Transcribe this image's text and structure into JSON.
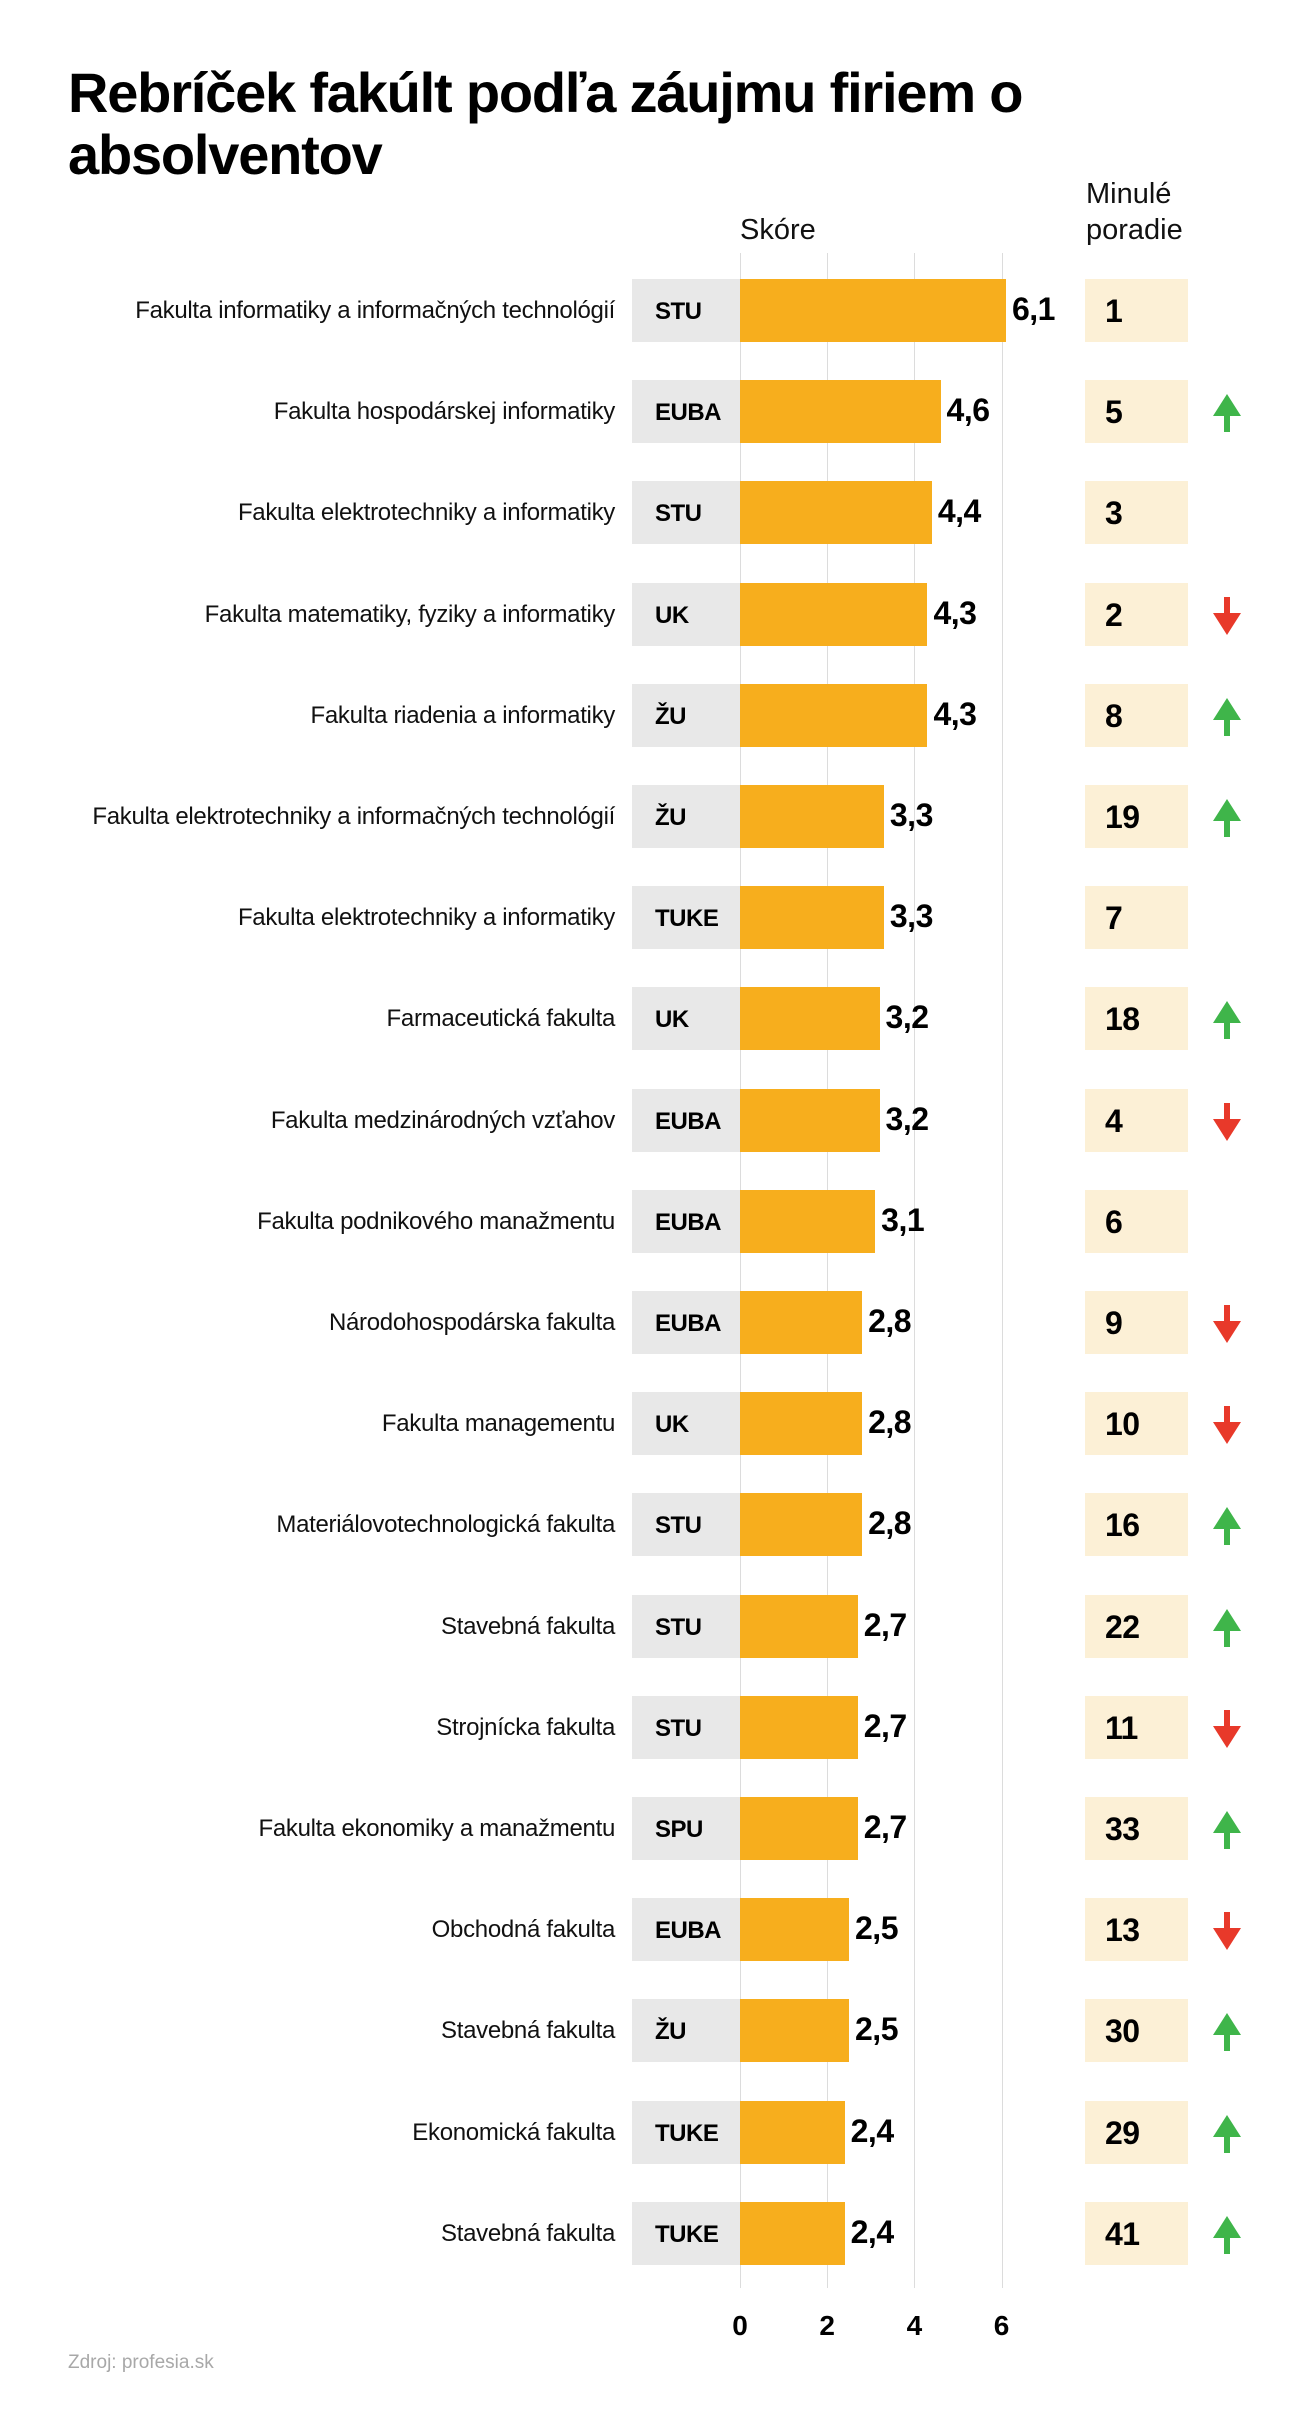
{
  "title": "Rebríček fakúlt podľa záujmu firiem o absolventov",
  "headers": {
    "score": "Skóre",
    "previous_rank_line1": "Minulé",
    "previous_rank_line2": "poradie"
  },
  "source": "Zdroj: profesia.sk",
  "colors": {
    "bar": "#f7ae1d",
    "org_box": "#e8e8e8",
    "prev_box": "#fcf0d6",
    "up": "#3fb54a",
    "down": "#e8392a",
    "grid": "#dcdcdc"
  },
  "chart_data": {
    "type": "bar",
    "orientation": "horizontal",
    "title": "Rebríček fakúlt podľa záujmu firiem o absolventov",
    "xlabel": "Skóre",
    "xlim": [
      0,
      6.5
    ],
    "xticks": [
      0,
      2,
      4,
      6
    ],
    "grid": true,
    "value_format": "decimal-comma",
    "rows": [
      {
        "faculty": "Fakulta informatiky a informačných technológií",
        "university": "STU",
        "score": 6.1,
        "score_label": "6,1",
        "previous_rank": "1",
        "trend": "none"
      },
      {
        "faculty": "Fakulta hospodárskej informatiky",
        "university": "EUBA",
        "score": 4.6,
        "score_label": "4,6",
        "previous_rank": "5",
        "trend": "up"
      },
      {
        "faculty": "Fakulta elektrotechniky a informatiky",
        "university": "STU",
        "score": 4.4,
        "score_label": "4,4",
        "previous_rank": "3",
        "trend": "none"
      },
      {
        "faculty": "Fakulta matematiky, fyziky a informatiky",
        "university": "UK",
        "score": 4.3,
        "score_label": "4,3",
        "previous_rank": "2",
        "trend": "down"
      },
      {
        "faculty": "Fakulta riadenia a informatiky",
        "university": "ŽU",
        "score": 4.3,
        "score_label": "4,3",
        "previous_rank": "8",
        "trend": "up"
      },
      {
        "faculty": "Fakulta elektrotechniky a informačných technológií",
        "university": "ŽU",
        "score": 3.3,
        "score_label": "3,3",
        "previous_rank": "19",
        "trend": "up"
      },
      {
        "faculty": "Fakulta elektrotechniky a informatiky",
        "university": "TUKE",
        "score": 3.3,
        "score_label": "3,3",
        "previous_rank": "7",
        "trend": "none"
      },
      {
        "faculty": "Farmaceutická fakulta",
        "university": "UK",
        "score": 3.2,
        "score_label": "3,2",
        "previous_rank": "18",
        "trend": "up"
      },
      {
        "faculty": "Fakulta medzinárodných vzťahov",
        "university": "EUBA",
        "score": 3.2,
        "score_label": "3,2",
        "previous_rank": "4",
        "trend": "down"
      },
      {
        "faculty": "Fakulta podnikového manažmentu",
        "university": "EUBA",
        "score": 3.1,
        "score_label": "3,1",
        "previous_rank": "6",
        "trend": "none"
      },
      {
        "faculty": "Národohospodárska fakulta",
        "university": "EUBA",
        "score": 2.8,
        "score_label": "2,8",
        "previous_rank": "9",
        "trend": "down"
      },
      {
        "faculty": "Fakulta managementu",
        "university": "UK",
        "score": 2.8,
        "score_label": "2,8",
        "previous_rank": "10",
        "trend": "down"
      },
      {
        "faculty": "Materiálovotechnologická fakulta",
        "university": "STU",
        "score": 2.8,
        "score_label": "2,8",
        "previous_rank": "16",
        "trend": "up"
      },
      {
        "faculty": "Stavebná fakulta",
        "university": "STU",
        "score": 2.7,
        "score_label": "2,7",
        "previous_rank": "22",
        "trend": "up"
      },
      {
        "faculty": "Strojnícka fakulta",
        "university": "STU",
        "score": 2.7,
        "score_label": "2,7",
        "previous_rank": "11",
        "trend": "down"
      },
      {
        "faculty": "Fakulta ekonomiky a manažmentu",
        "university": "SPU",
        "score": 2.7,
        "score_label": "2,7",
        "previous_rank": "33",
        "trend": "up"
      },
      {
        "faculty": "Obchodná fakulta",
        "university": "EUBA",
        "score": 2.5,
        "score_label": "2,5",
        "previous_rank": "13",
        "trend": "down"
      },
      {
        "faculty": "Stavebná fakulta",
        "university": "ŽU",
        "score": 2.5,
        "score_label": "2,5",
        "previous_rank": "30",
        "trend": "up"
      },
      {
        "faculty": "Ekonomická fakulta",
        "university": "TUKE",
        "score": 2.4,
        "score_label": "2,4",
        "previous_rank": "29",
        "trend": "up"
      },
      {
        "faculty": "Stavebná fakulta",
        "university": "TUKE",
        "score": 2.4,
        "score_label": "2,4",
        "previous_rank": "41",
        "trend": "up"
      }
    ]
  }
}
